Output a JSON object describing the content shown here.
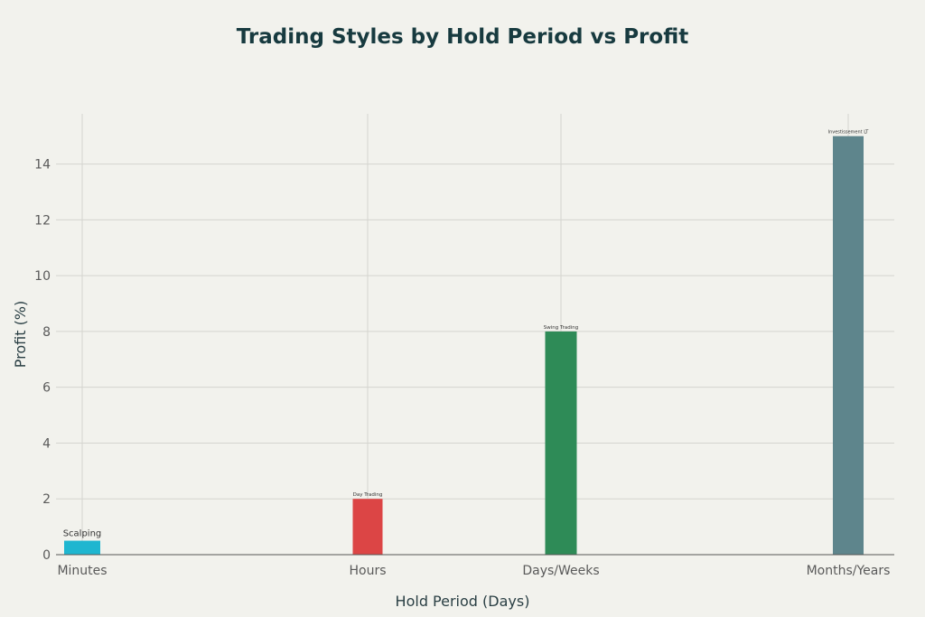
{
  "chart_data": {
    "type": "bar",
    "title": "Trading Styles by Hold Period vs Profit",
    "xlabel": "Hold Period (Days)",
    "ylabel": "Profit (%)",
    "categories": [
      "Minutes",
      "Hours",
      "Days/Weeks",
      "Months/Years"
    ],
    "bars": [
      {
        "label": "Scalping",
        "value": 0.5,
        "color": "#1fb6d0"
      },
      {
        "label": "Day Trading",
        "value": 2,
        "color": "#dc4545"
      },
      {
        "label": "Swing Trading",
        "value": 8,
        "color": "#2e8b57"
      },
      {
        "label": "Investissement LT",
        "value": 15,
        "color": "#5e858c"
      }
    ],
    "yticks": [
      0,
      2,
      4,
      6,
      8,
      10,
      12,
      14
    ],
    "ylim": [
      0,
      15.8
    ],
    "grid": true,
    "legend": "none"
  }
}
